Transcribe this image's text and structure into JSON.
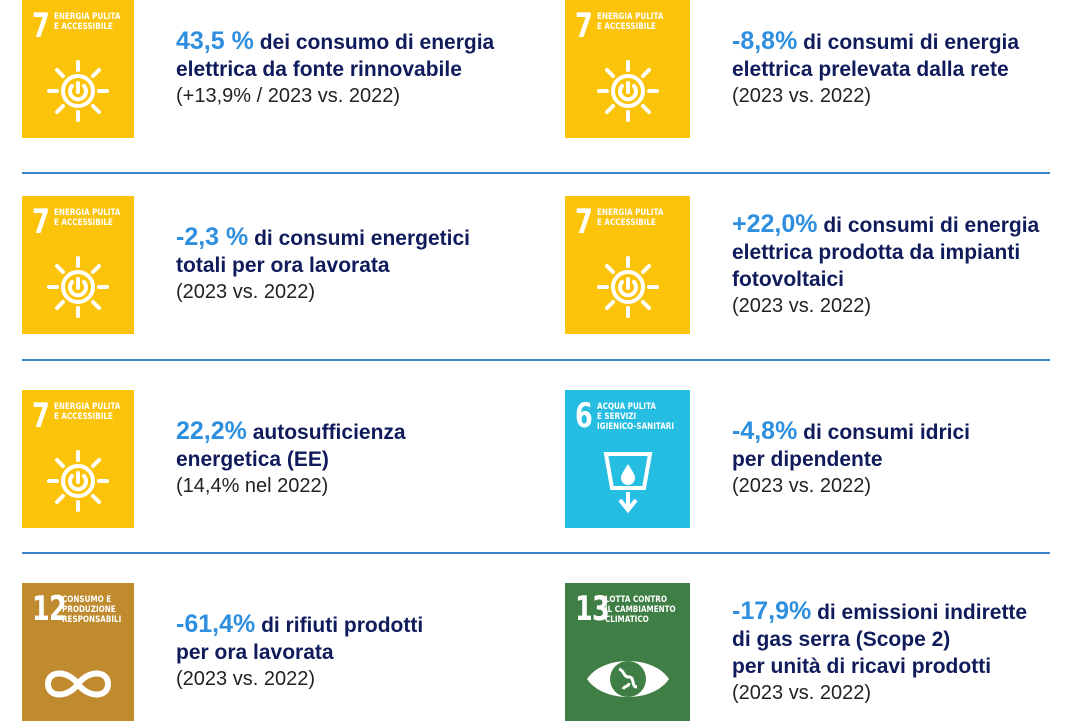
{
  "items": [
    {
      "icon": {
        "number": "7",
        "lines": [
          "ENERGIA PULITA",
          "E ACCESSIBILE"
        ],
        "color": "#fcc30b"
      },
      "highlight": "43,5 %",
      "lines": [
        "dei consumo di energia",
        "elettrica da fonte rinnovabile"
      ],
      "note": "(+13,9% / 2023 vs. 2022)"
    },
    {
      "icon": {
        "number": "7",
        "lines": [
          "ENERGIA PULITA",
          "E ACCESSIBILE"
        ],
        "color": "#fcc30b"
      },
      "highlight": "-8,8%",
      "lines": [
        "di consumi di energia",
        "elettrica prelevata dalla rete"
      ],
      "note": "(2023 vs. 2022)"
    },
    {
      "icon": {
        "number": "7",
        "lines": [
          "ENERGIA PULITA",
          "E ACCESSIBILE"
        ],
        "color": "#fcc30b"
      },
      "highlight": "-2,3 %",
      "lines": [
        "di consumi energetici",
        "totali per ora lavorata"
      ],
      "note": "(2023 vs. 2022)"
    },
    {
      "icon": {
        "number": "7",
        "lines": [
          "ENERGIA PULITA",
          "E ACCESSIBILE"
        ],
        "color": "#fcc30b"
      },
      "highlight": "+22,0%",
      "lines": [
        "di consumi di energia",
        "elettrica prodotta da impianti",
        "fotovoltaici"
      ],
      "note": "(2023 vs. 2022)"
    },
    {
      "icon": {
        "number": "7",
        "lines": [
          "ENERGIA PULITA",
          "E ACCESSIBILE"
        ],
        "color": "#fcc30b"
      },
      "highlight": "22,2%",
      "lines": [
        "autosufficienza",
        "energetica (EE)"
      ],
      "note": "(14,4% nel 2022)"
    },
    {
      "icon": {
        "number": "6",
        "lines": [
          "ACQUA PULITA",
          "E SERVIZI",
          "IGIENICO-SANITARI"
        ],
        "color": "#26bde2"
      },
      "highlight": "-4,8%",
      "lines": [
        "di consumi idrici",
        "per dipendente"
      ],
      "note": "(2023 vs. 2022)"
    },
    {
      "icon": {
        "number": "12",
        "lines": [
          "CONSUMO E",
          "PRODUZIONE",
          "RESPONSABILI"
        ],
        "color": "#bf8b2e"
      },
      "highlight": "-61,4%",
      "lines": [
        "di rifiuti prodotti",
        "per ora lavorata"
      ],
      "note": "(2023 vs. 2022)"
    },
    {
      "icon": {
        "number": "13",
        "lines": [
          "LOTTA CONTRO",
          "IL CAMBIAMENTO",
          "CLIMATICO"
        ],
        "color": "#3f7e44"
      },
      "highlight": "-17,9%",
      "lines": [
        "di emissioni indirette",
        "di gas serra (Scope 2)",
        "per unità di ricavi prodotti"
      ],
      "note": "(2023 vs. 2022)"
    }
  ]
}
